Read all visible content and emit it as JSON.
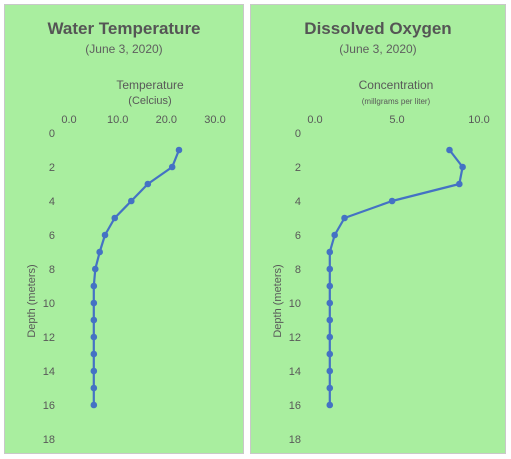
{
  "chart_data": [
    {
      "type": "line",
      "title": "Water Temperature",
      "subtitle": "(June 3, 2020)",
      "xlabel": "Temperature",
      "xlabel_sub": "(Celcius)",
      "ylabel": "Depth (meters)",
      "xlim": [
        0,
        30
      ],
      "ylim": [
        0,
        18
      ],
      "x_ticks": [
        "0.0",
        "10.0",
        "20.0",
        "30.0"
      ],
      "x_tick_values": [
        0,
        10,
        20,
        30
      ],
      "y_ticks": [
        "0",
        "2",
        "4",
        "6",
        "8",
        "10",
        "12",
        "14",
        "16",
        "18"
      ],
      "y_tick_values": [
        0,
        2,
        4,
        6,
        8,
        10,
        12,
        14,
        16,
        18
      ],
      "y_inverted": true,
      "x_axis_position": "top",
      "grid": false,
      "series_color": "#4472c4",
      "series": [
        {
          "x": [
            22.6,
            21.2,
            16.2,
            12.8,
            9.4,
            7.4,
            6.3,
            5.4,
            5.1,
            5.1,
            5.1,
            5.1,
            5.1,
            5.1,
            5.1,
            5.1
          ],
          "y": [
            1,
            2,
            3,
            4,
            5,
            6,
            7,
            8,
            9,
            10,
            11,
            12,
            13,
            14,
            15,
            16
          ]
        }
      ]
    },
    {
      "type": "line",
      "title": "Dissolved Oxygen",
      "subtitle": "(June 3, 2020)",
      "xlabel": "Concentration",
      "xlabel_sub": "(millgrams per liter)",
      "ylabel": "Depth (meters)",
      "xlim": [
        0,
        10
      ],
      "ylim": [
        0,
        18
      ],
      "x_ticks": [
        "0.0",
        "5.0",
        "10.0"
      ],
      "x_tick_values": [
        0,
        5,
        10
      ],
      "y_ticks": [
        "0",
        "2",
        "4",
        "6",
        "8",
        "10",
        "12",
        "14",
        "16",
        "18"
      ],
      "y_tick_values": [
        0,
        2,
        4,
        6,
        8,
        10,
        12,
        14,
        16,
        18
      ],
      "y_inverted": true,
      "x_axis_position": "top",
      "grid": false,
      "series_color": "#4472c4",
      "series": [
        {
          "x": [
            8.2,
            9.0,
            8.8,
            4.7,
            1.8,
            1.2,
            0.9,
            0.9,
            0.9,
            0.9,
            0.9,
            0.9,
            0.9,
            0.9,
            0.9,
            0.9
          ],
          "y": [
            1,
            2,
            3,
            4,
            5,
            6,
            7,
            8,
            9,
            10,
            11,
            12,
            13,
            14,
            15,
            16
          ]
        }
      ]
    }
  ]
}
